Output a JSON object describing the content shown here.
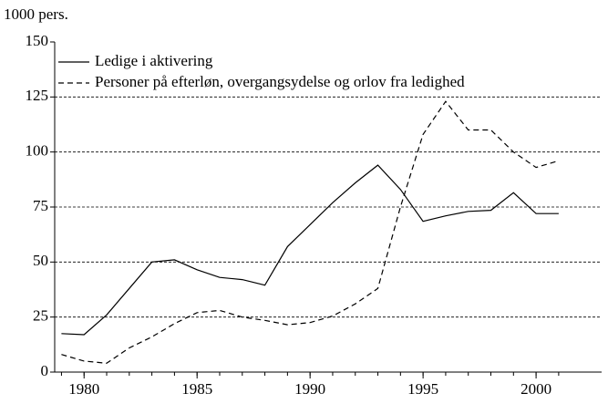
{
  "chart_data": {
    "type": "line",
    "y_label": "1000 pers.",
    "x": [
      1979,
      1980,
      1981,
      1982,
      1983,
      1984,
      1985,
      1986,
      1987,
      1988,
      1989,
      1990,
      1991,
      1992,
      1993,
      1994,
      1995,
      1996,
      1997,
      1998,
      1999,
      2000,
      2001
    ],
    "series": [
      {
        "name": "Ledige i aktivering",
        "color": "#000000",
        "dash": "solid",
        "values": [
          17.5,
          17,
          26,
          38,
          50,
          51,
          46.5,
          43,
          42,
          39.5,
          57,
          67,
          77,
          86,
          94,
          83,
          68.5,
          71,
          73,
          73.5,
          81.5,
          72,
          72
        ]
      },
      {
        "name": "Personer på efterløn, overgangsydelse og orlov fra ledighed",
        "color": "#000000",
        "dash": "dashed",
        "values": [
          8,
          5,
          4,
          11,
          16,
          22,
          27,
          28,
          25,
          23.5,
          21.5,
          22.5,
          25.5,
          31,
          38,
          75,
          108,
          123,
          110,
          110,
          100,
          93,
          96
        ]
      }
    ],
    "xlim": [
      1978.7,
      2002.9
    ],
    "xticks": [
      1980,
      1985,
      1990,
      1995,
      2000
    ],
    "ylim": [
      0,
      150
    ],
    "yticks": [
      0,
      25,
      50,
      75,
      100,
      125,
      150
    ],
    "grid": true,
    "legend": "top-left"
  }
}
